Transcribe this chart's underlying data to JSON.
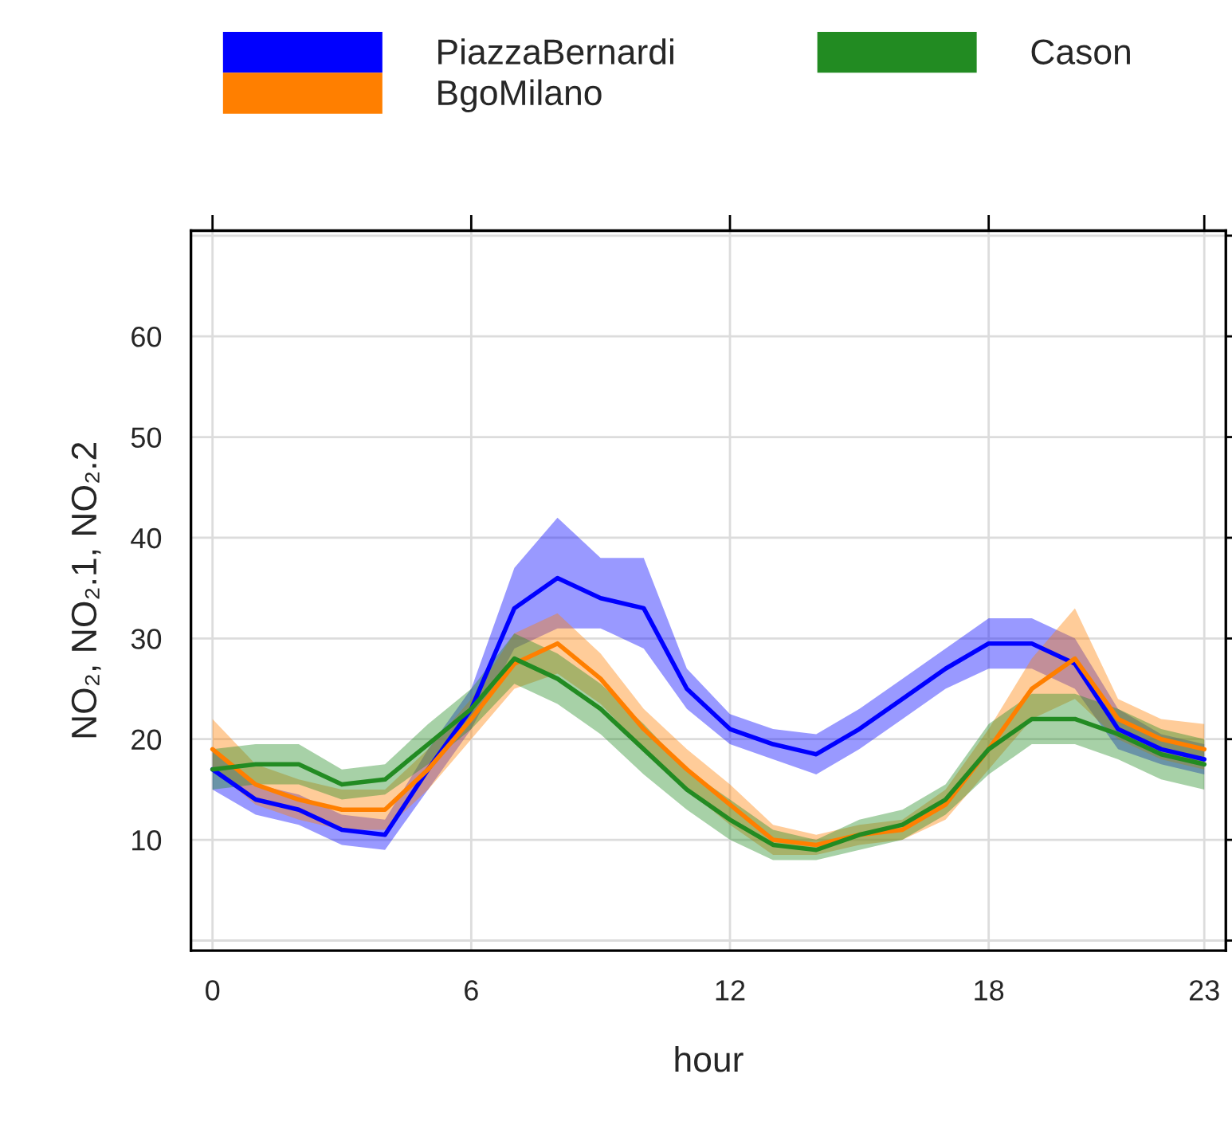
{
  "chart_data": {
    "type": "line",
    "xlabel": "hour",
    "ylabel": "NO₂, NO₂.1, NO₂.2",
    "x": [
      0,
      1,
      2,
      3,
      4,
      5,
      6,
      7,
      8,
      9,
      10,
      11,
      12,
      13,
      14,
      15,
      16,
      17,
      18,
      19,
      20,
      21,
      22,
      23
    ],
    "series": [
      {
        "name": "PiazzaBernardi",
        "color": "#0000ff",
        "values": [
          17,
          14,
          13,
          11,
          10.5,
          17,
          23,
          33,
          36,
          34,
          33,
          25,
          21,
          19.5,
          18.5,
          21,
          24,
          27,
          29.5,
          29.5,
          27.5,
          21,
          19,
          18
        ],
        "lower": [
          15,
          12.5,
          11.5,
          9.5,
          9,
          15,
          21,
          29,
          31,
          31,
          29,
          23,
          19.5,
          18,
          16.5,
          19,
          22,
          25,
          27,
          27,
          25,
          19,
          17.5,
          16.5
        ],
        "upper": [
          19,
          15.5,
          14.5,
          12.5,
          12,
          19,
          25,
          37,
          42,
          38,
          38,
          27,
          22.5,
          21,
          20.5,
          23,
          26,
          29,
          32,
          32,
          30,
          23,
          20.5,
          19.5
        ]
      },
      {
        "name": "BgoMilano",
        "color": "#ff7f00",
        "values": [
          19,
          15.5,
          14,
          13,
          13,
          17,
          22,
          27.5,
          29.5,
          26,
          21,
          17,
          13.5,
          10,
          9.5,
          10.5,
          11,
          13.5,
          19,
          25,
          28,
          22,
          20,
          19
        ],
        "lower": [
          17,
          13.5,
          12,
          11,
          11,
          15,
          20,
          25,
          26.5,
          23.5,
          19,
          15,
          11.5,
          8.5,
          8.5,
          9.5,
          10,
          12,
          17,
          22,
          24,
          20,
          18,
          17
        ],
        "upper": [
          22,
          17.5,
          16,
          15,
          15,
          19,
          24,
          30.5,
          32.5,
          28.5,
          23,
          19,
          15.5,
          11.5,
          10.5,
          11.5,
          12,
          15,
          21,
          28,
          33,
          24,
          22,
          21.5
        ]
      },
      {
        "name": "Cason",
        "color": "#228b22",
        "values": [
          17,
          17.5,
          17.5,
          15.5,
          16,
          19.5,
          23,
          28,
          26,
          23,
          19,
          15,
          12,
          9.5,
          9,
          10.5,
          11.5,
          14,
          19,
          22,
          22,
          20.5,
          18.5,
          17.5
        ],
        "lower": [
          15,
          15.5,
          15.5,
          14,
          14.5,
          17.5,
          21,
          25.5,
          23.5,
          20.5,
          16.5,
          13,
          10,
          8,
          8,
          9,
          10,
          12.5,
          16.5,
          19.5,
          19.5,
          18,
          16,
          15
        ],
        "upper": [
          19,
          19.5,
          19.5,
          17,
          17.5,
          21.5,
          25,
          30.5,
          28.5,
          25.5,
          21.5,
          17,
          14,
          11,
          10,
          12,
          13,
          15.5,
          21.5,
          24.5,
          24.5,
          23,
          21,
          20
        ]
      }
    ],
    "xlim": [
      -0.5,
      23.5
    ],
    "xticks": [
      0,
      6,
      12,
      18,
      23
    ],
    "ylim": [
      -1,
      70.5
    ],
    "yticks": [
      {
        "value": 0,
        "label": null
      },
      10,
      20,
      30,
      40,
      50,
      60,
      {
        "value": 70,
        "label": null
      }
    ],
    "grid": true,
    "legend": "top"
  }
}
